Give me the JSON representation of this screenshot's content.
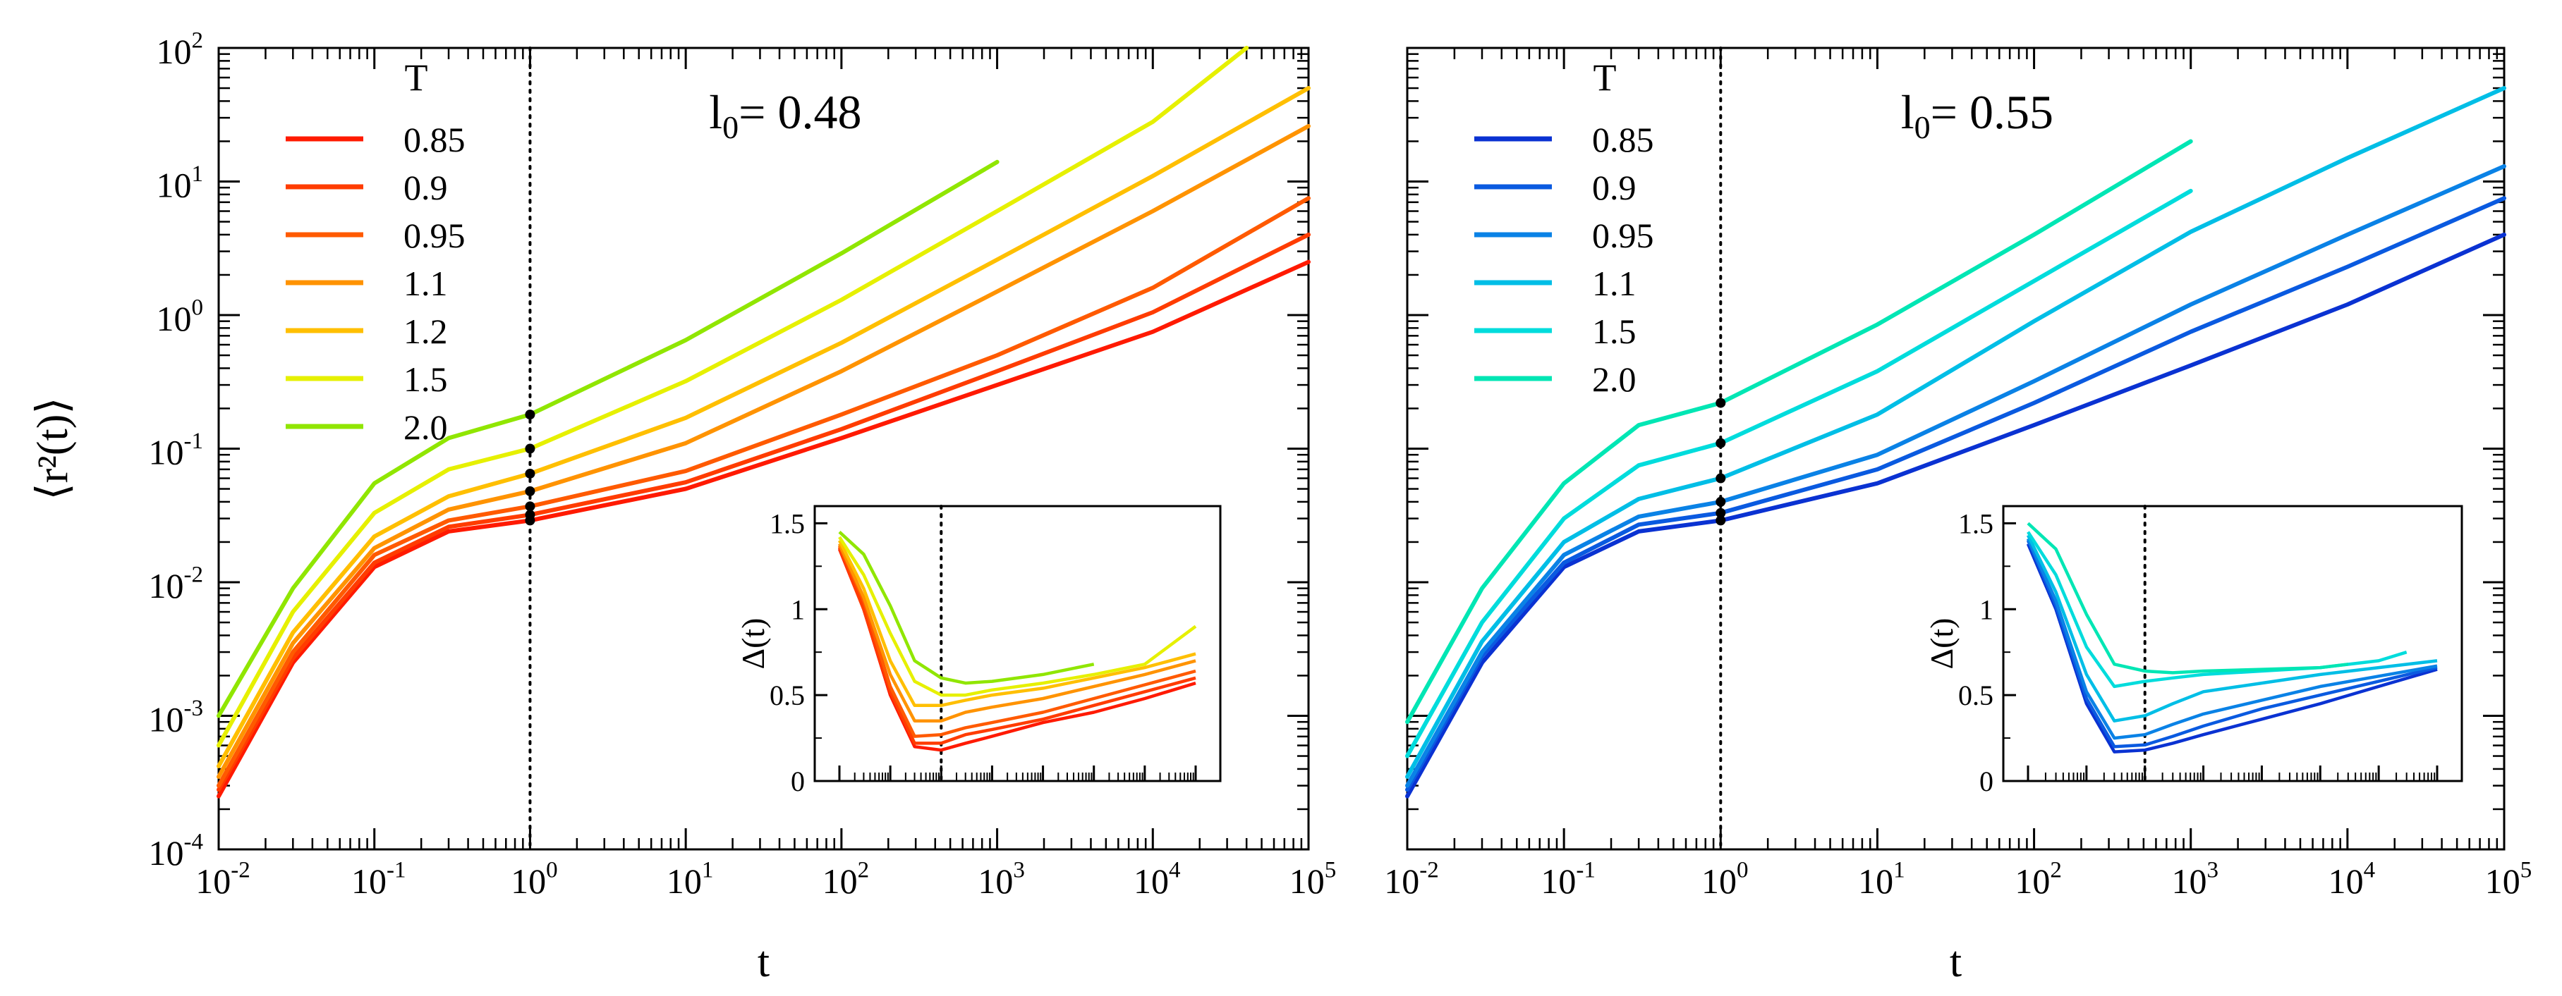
{
  "figure": {
    "x_axis_label": "t",
    "y_axis_label": "⟨r²(t)⟩",
    "legend_title": "T",
    "annotation_text": "l₀= 0.48 / l₀= 0.55",
    "inset_y_label": "Δ(t)"
  },
  "chart_data": [
    {
      "type": "line",
      "panel": "left",
      "annotation": {
        "prefix": "l",
        "sub": "0",
        "text": "= 0.48"
      },
      "xscale": "log",
      "yscale": "log",
      "xlim": [
        0.01,
        100000
      ],
      "ylim": [
        0.0001,
        100
      ],
      "xlabel": "t",
      "ylabel": "⟨r²(t)⟩",
      "legend": {
        "title": "T",
        "placement": "top-left"
      },
      "vline_x": 1,
      "xticks": [
        {
          "base": "10",
          "exp": "-2"
        },
        {
          "base": "10",
          "exp": "-1"
        },
        {
          "base": "10",
          "exp": "0"
        },
        {
          "base": "10",
          "exp": "1"
        },
        {
          "base": "10",
          "exp": "2"
        },
        {
          "base": "10",
          "exp": "3"
        },
        {
          "base": "10",
          "exp": "4"
        },
        {
          "base": "10",
          "exp": "5"
        }
      ],
      "yticks": [
        {
          "base": "10",
          "exp": "-4"
        },
        {
          "base": "10",
          "exp": "-3"
        },
        {
          "base": "10",
          "exp": "-2"
        },
        {
          "base": "10",
          "exp": "-1"
        },
        {
          "base": "10",
          "exp": "0"
        },
        {
          "base": "10",
          "exp": "1"
        },
        {
          "base": "10",
          "exp": "2"
        }
      ],
      "series": [
        {
          "name": "0.85",
          "color": "#ff1a00",
          "x": [
            0.01,
            0.03,
            0.1,
            0.3,
            1,
            10,
            100,
            1000,
            10000,
            100000
          ],
          "y": [
            0.00025,
            0.0025,
            0.013,
            0.024,
            0.029,
            0.05,
            0.12,
            0.3,
            0.75,
            2.5
          ]
        },
        {
          "name": "0.9",
          "color": "#ff3c00",
          "x": [
            0.01,
            0.03,
            0.1,
            0.3,
            1,
            10,
            100,
            1000,
            10000,
            100000
          ],
          "y": [
            0.00028,
            0.0027,
            0.014,
            0.026,
            0.032,
            0.056,
            0.14,
            0.38,
            1.05,
            4
          ]
        },
        {
          "name": "0.95",
          "color": "#ff5a00",
          "x": [
            0.01,
            0.03,
            0.1,
            0.3,
            1,
            10,
            100,
            1000,
            10000,
            100000
          ],
          "y": [
            0.0003,
            0.003,
            0.016,
            0.029,
            0.037,
            0.068,
            0.18,
            0.5,
            1.6,
            7.5
          ]
        },
        {
          "name": "1.1",
          "color": "#ff9300",
          "x": [
            0.01,
            0.03,
            0.1,
            0.3,
            1,
            10,
            100,
            1000,
            10000,
            100000
          ],
          "y": [
            0.00035,
            0.0035,
            0.018,
            0.035,
            0.048,
            0.11,
            0.38,
            1.5,
            6,
            26
          ]
        },
        {
          "name": "1.2",
          "color": "#ffbf00",
          "x": [
            0.01,
            0.03,
            0.1,
            0.3,
            1,
            10,
            100,
            1000,
            10000,
            100000
          ],
          "y": [
            0.00042,
            0.0042,
            0.022,
            0.044,
            0.065,
            0.17,
            0.62,
            2.6,
            11,
            50
          ]
        },
        {
          "name": "1.5",
          "color": "#e6f000",
          "x": [
            0.01,
            0.03,
            0.1,
            0.3,
            1,
            10,
            100,
            1000,
            10000,
            40000
          ],
          "y": [
            0.0006,
            0.006,
            0.033,
            0.07,
            0.1,
            0.32,
            1.3,
            6,
            28,
            100
          ]
        },
        {
          "name": "2.0",
          "color": "#90e600",
          "x": [
            0.01,
            0.03,
            0.1,
            0.3,
            1,
            10,
            100,
            1000
          ],
          "y": [
            0.001,
            0.009,
            0.055,
            0.12,
            0.18,
            0.65,
            2.9,
            14
          ]
        }
      ],
      "inset": {
        "type": "line",
        "ylabel": "Δ(t)",
        "xscale": "log",
        "xlim": [
          0.01,
          100000
        ],
        "ylim": [
          0,
          1.6
        ],
        "yticks": [
          "0",
          "0.5",
          "1",
          "1.5"
        ],
        "vline_x": 1,
        "series": [
          {
            "name": "0.85",
            "color": "#ff1a00",
            "x": [
              0.01,
              0.03,
              0.1,
              0.3,
              1,
              3,
              10,
              100,
              1000,
              10000,
              100000
            ],
            "y": [
              1.35,
              1.0,
              0.5,
              0.2,
              0.18,
              0.22,
              0.26,
              0.34,
              0.4,
              0.48,
              0.57
            ]
          },
          {
            "name": "0.9",
            "color": "#ff3c00",
            "x": [
              0.01,
              0.03,
              0.1,
              0.3,
              1,
              3,
              10,
              100,
              1000,
              10000,
              100000
            ],
            "y": [
              1.36,
              1.0,
              0.52,
              0.22,
              0.22,
              0.27,
              0.3,
              0.36,
              0.44,
              0.52,
              0.6
            ]
          },
          {
            "name": "0.95",
            "color": "#ff5a00",
            "x": [
              0.01,
              0.03,
              0.1,
              0.3,
              1,
              3,
              10,
              100,
              1000,
              10000,
              100000
            ],
            "y": [
              1.37,
              1.05,
              0.55,
              0.26,
              0.27,
              0.31,
              0.34,
              0.4,
              0.48,
              0.56,
              0.64
            ]
          },
          {
            "name": "1.1",
            "color": "#ff9300",
            "x": [
              0.01,
              0.03,
              0.1,
              0.3,
              1,
              3,
              10,
              100,
              1000,
              10000,
              100000
            ],
            "y": [
              1.38,
              1.07,
              0.62,
              0.35,
              0.35,
              0.4,
              0.43,
              0.48,
              0.55,
              0.62,
              0.7
            ]
          },
          {
            "name": "1.2",
            "color": "#ffbf00",
            "x": [
              0.01,
              0.03,
              0.1,
              0.3,
              1,
              3,
              10,
              100,
              1000,
              10000,
              100000
            ],
            "y": [
              1.4,
              1.12,
              0.7,
              0.44,
              0.44,
              0.47,
              0.5,
              0.54,
              0.6,
              0.66,
              0.74
            ]
          },
          {
            "name": "1.5",
            "color": "#e6f000",
            "x": [
              0.01,
              0.03,
              0.1,
              0.3,
              1,
              3,
              10,
              100,
              1000,
              10000,
              100000
            ],
            "y": [
              1.42,
              1.2,
              0.86,
              0.58,
              0.5,
              0.5,
              0.53,
              0.57,
              0.62,
              0.68,
              0.9
            ]
          },
          {
            "name": "2.0",
            "color": "#90e600",
            "x": [
              0.01,
              0.03,
              0.1,
              0.3,
              1,
              3,
              10,
              100,
              1000
            ],
            "y": [
              1.45,
              1.32,
              1.02,
              0.7,
              0.6,
              0.57,
              0.58,
              0.62,
              0.68
            ]
          }
        ]
      }
    },
    {
      "type": "line",
      "panel": "right",
      "annotation": {
        "prefix": "l",
        "sub": "0",
        "text": "= 0.55"
      },
      "xscale": "log",
      "yscale": "log",
      "xlim": [
        0.01,
        100000
      ],
      "ylim": [
        0.0001,
        100
      ],
      "xlabel": "t",
      "ylabel": "",
      "legend": {
        "title": "T",
        "placement": "top-left"
      },
      "vline_x": 1,
      "xticks": [
        {
          "base": "10",
          "exp": "-2"
        },
        {
          "base": "10",
          "exp": "-1"
        },
        {
          "base": "10",
          "exp": "0"
        },
        {
          "base": "10",
          "exp": "1"
        },
        {
          "base": "10",
          "exp": "2"
        },
        {
          "base": "10",
          "exp": "3"
        },
        {
          "base": "10",
          "exp": "4"
        },
        {
          "base": "10",
          "exp": "5"
        }
      ],
      "yticks": [],
      "series": [
        {
          "name": "0.85",
          "color": "#0a32d2",
          "x": [
            0.01,
            0.03,
            0.1,
            0.3,
            1,
            10,
            100,
            1000,
            10000,
            100000
          ],
          "y": [
            0.00025,
            0.0025,
            0.013,
            0.024,
            0.029,
            0.055,
            0.15,
            0.42,
            1.2,
            4
          ]
        },
        {
          "name": "0.9",
          "color": "#0a5ae0",
          "x": [
            0.01,
            0.03,
            0.1,
            0.3,
            1,
            10,
            100,
            1000,
            10000,
            100000
          ],
          "y": [
            0.00028,
            0.0028,
            0.014,
            0.027,
            0.033,
            0.07,
            0.22,
            0.75,
            2.3,
            7.5
          ]
        },
        {
          "name": "0.95",
          "color": "#0a82e6",
          "x": [
            0.01,
            0.03,
            0.1,
            0.3,
            1,
            10,
            100,
            1000,
            10000,
            100000
          ],
          "y": [
            0.0003,
            0.003,
            0.016,
            0.031,
            0.04,
            0.09,
            0.32,
            1.2,
            4,
            13
          ]
        },
        {
          "name": "1.1",
          "color": "#00bee6",
          "x": [
            0.01,
            0.03,
            0.1,
            0.3,
            1,
            10,
            100,
            1000,
            10000,
            100000
          ],
          "y": [
            0.00035,
            0.0036,
            0.02,
            0.042,
            0.06,
            0.18,
            0.9,
            4.2,
            15,
            50
          ]
        },
        {
          "name": "1.5",
          "color": "#00dcdc",
          "x": [
            0.01,
            0.03,
            0.1,
            0.3,
            1,
            10,
            100,
            1000
          ],
          "y": [
            0.0005,
            0.005,
            0.03,
            0.075,
            0.11,
            0.38,
            1.8,
            8.5
          ]
        },
        {
          "name": "2.0",
          "color": "#00e6b4",
          "x": [
            0.01,
            0.03,
            0.1,
            0.3,
            1,
            10,
            100,
            1000
          ],
          "y": [
            0.0009,
            0.009,
            0.055,
            0.15,
            0.22,
            0.85,
            4,
            20
          ]
        }
      ],
      "inset": {
        "type": "line",
        "ylabel": "Δ(t)",
        "xscale": "log",
        "xlim": [
          0.01,
          100000
        ],
        "ylim": [
          0,
          1.6
        ],
        "yticks": [
          "0",
          "0.5",
          "1",
          "1.5"
        ],
        "vline_x": 1,
        "series": [
          {
            "name": "0.85",
            "color": "#0a32d2",
            "x": [
              0.01,
              0.03,
              0.1,
              0.3,
              1,
              3,
              10,
              100,
              1000,
              10000,
              100000
            ],
            "y": [
              1.38,
              1.0,
              0.45,
              0.17,
              0.18,
              0.22,
              0.27,
              0.36,
              0.45,
              0.55,
              0.65
            ]
          },
          {
            "name": "0.9",
            "color": "#0a5ae0",
            "x": [
              0.01,
              0.03,
              0.1,
              0.3,
              1,
              3,
              10,
              100,
              1000,
              10000,
              100000
            ],
            "y": [
              1.4,
              1.02,
              0.48,
              0.2,
              0.21,
              0.26,
              0.32,
              0.42,
              0.5,
              0.58,
              0.66
            ]
          },
          {
            "name": "0.95",
            "color": "#0a82e6",
            "x": [
              0.01,
              0.03,
              0.1,
              0.3,
              1,
              3,
              10,
              100,
              1000,
              10000,
              100000
            ],
            "y": [
              1.41,
              1.05,
              0.52,
              0.25,
              0.27,
              0.33,
              0.39,
              0.47,
              0.55,
              0.61,
              0.67
            ]
          },
          {
            "name": "1.1",
            "color": "#00bee6",
            "x": [
              0.01,
              0.03,
              0.1,
              0.3,
              1,
              3,
              10,
              100,
              1000,
              10000,
              100000
            ],
            "y": [
              1.43,
              1.1,
              0.62,
              0.35,
              0.38,
              0.45,
              0.52,
              0.57,
              0.62,
              0.66,
              0.7
            ]
          },
          {
            "name": "1.5",
            "color": "#00dcdc",
            "x": [
              0.01,
              0.03,
              0.1,
              0.3,
              1,
              3,
              10,
              100,
              1000,
              10000,
              30000
            ],
            "y": [
              1.45,
              1.2,
              0.78,
              0.55,
              0.58,
              0.6,
              0.62,
              0.64,
              0.66,
              0.7,
              0.75
            ]
          },
          {
            "name": "2.0",
            "color": "#00e6b4",
            "x": [
              0.01,
              0.03,
              0.1,
              0.3,
              1,
              3,
              10,
              100,
              1000,
              3000
            ],
            "y": [
              1.5,
              1.35,
              0.97,
              0.68,
              0.64,
              0.63,
              0.64,
              0.65,
              0.66,
              0.68
            ]
          }
        ]
      }
    }
  ]
}
